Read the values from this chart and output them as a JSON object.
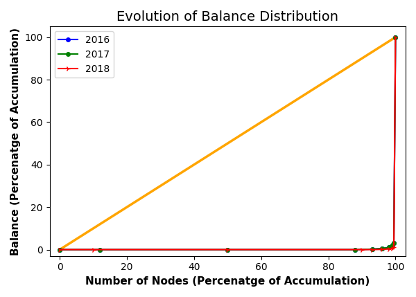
{
  "title": "Evolution of Balance Distribution",
  "xlabel": "Number of Nodes (Percenatge of Accumulation)",
  "ylabel": "Balance (Percenatge of Accumulation)",
  "xlim": [
    -3,
    103
  ],
  "ylim": [
    -3,
    105
  ],
  "diagonal_color": "orange",
  "diagonal_lw": 2.5,
  "series": [
    {
      "label": "2016",
      "color": "blue",
      "marker": "o",
      "markersize": 4,
      "linewidth": 1.5,
      "x": [
        0,
        12,
        50,
        88,
        93,
        96,
        98,
        99,
        99.5,
        100
      ],
      "y": [
        0,
        0.0,
        0.0,
        0.0,
        0.2,
        0.5,
        1.0,
        2.0,
        3.0,
        100
      ]
    },
    {
      "label": "2017",
      "color": "green",
      "marker": "o",
      "markersize": 4,
      "linewidth": 1.5,
      "x": [
        0,
        12,
        50,
        88,
        93,
        96,
        98,
        99,
        99.5,
        100
      ],
      "y": [
        0,
        0.0,
        0.0,
        0.0,
        0.2,
        0.5,
        1.0,
        2.0,
        3.0,
        100
      ]
    },
    {
      "label": "2018",
      "color": "red",
      "marker": "4",
      "markersize": 5,
      "linewidth": 1.5,
      "x": [
        0,
        10,
        50,
        90,
        93,
        96,
        98,
        99,
        99.5,
        100
      ],
      "y": [
        0,
        0.0,
        0.0,
        0.0,
        0.0,
        0.1,
        0.3,
        0.5,
        1.0,
        100
      ]
    }
  ],
  "xticks": [
    0,
    20,
    40,
    60,
    80,
    100
  ],
  "yticks": [
    0,
    20,
    40,
    60,
    80,
    100
  ],
  "title_fontsize": 14,
  "label_fontsize": 11,
  "legend_fontsize": 10,
  "tick_fontsize": 10
}
